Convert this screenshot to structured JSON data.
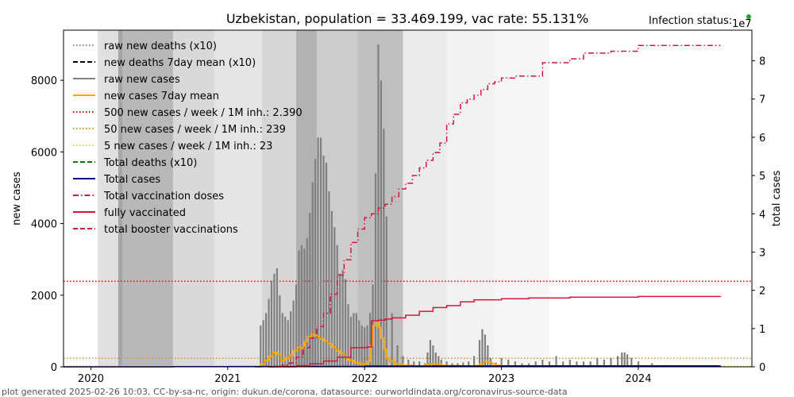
{
  "chart_data": {
    "type": "bar",
    "title": "Uzbekistan, population = 33.469.199, vac rate: 55.131%",
    "status_label": "Infection status:",
    "status_color": "#2ca02c",
    "exponent_label": "1e7",
    "ylabel_left": "new cases",
    "ylabel_right": "total cases",
    "xlim": [
      2019.8,
      2024.83
    ],
    "ylim_left": [
      0,
      9400
    ],
    "ylim_right": [
      0,
      88000000
    ],
    "x_ticks": [
      {
        "value": 2020,
        "label": "2020"
      },
      {
        "value": 2021,
        "label": "2021"
      },
      {
        "value": 2022,
        "label": "2022"
      },
      {
        "value": 2023,
        "label": "2023"
      },
      {
        "value": 2024,
        "label": "2024"
      }
    ],
    "y_ticks_left": [
      {
        "value": 0,
        "label": "0"
      },
      {
        "value": 2000,
        "label": "2000"
      },
      {
        "value": 4000,
        "label": "4000"
      },
      {
        "value": 6000,
        "label": "6000"
      },
      {
        "value": 8000,
        "label": "8000"
      }
    ],
    "y_ticks_right": [
      {
        "value": 0,
        "label": "0"
      },
      {
        "value": 10000000,
        "label": "1"
      },
      {
        "value": 20000000,
        "label": "2"
      },
      {
        "value": 30000000,
        "label": "3"
      },
      {
        "value": 40000000,
        "label": "4"
      },
      {
        "value": 50000000,
        "label": "5"
      },
      {
        "value": 60000000,
        "label": "6"
      },
      {
        "value": 70000000,
        "label": "7"
      },
      {
        "value": 80000000,
        "label": "8"
      }
    ],
    "threshold_lines": [
      {
        "value": 2390,
        "color": "#ff0000",
        "label": "500 new cases / week / 1M inh.: 2.390"
      },
      {
        "value": 239,
        "color": "#e08a2b",
        "label": "50 new cases / week / 1M inh.: 239"
      },
      {
        "value": 23,
        "color": "#e8d21c",
        "label": "5 new cases / week / 1M inh.: 23"
      }
    ],
    "legend": [
      {
        "label": "raw new deaths (x10)",
        "color": "#808080",
        "style": "dotted"
      },
      {
        "label": "new deaths 7day mean (x10)",
        "color": "#000000",
        "style": "dashed"
      },
      {
        "label": "raw new cases",
        "color": "#808080",
        "style": "solid"
      },
      {
        "label": "new cases 7day mean",
        "color": "#ffa500",
        "style": "solid"
      },
      {
        "label": "500 new cases / week / 1M inh.: 2.390",
        "color": "#ff0000",
        "style": "dotted"
      },
      {
        "label": "50 new cases / week / 1M inh.: 239",
        "color": "#e08a2b",
        "style": "dotted"
      },
      {
        "label": "5 new cases / week / 1M inh.: 23",
        "color": "#e8d21c",
        "style": "dotted"
      },
      {
        "label": "Total deaths (x10)",
        "color": "#008000",
        "style": "dashed"
      },
      {
        "label": "Total cases",
        "color": "#00008b",
        "style": "solid"
      },
      {
        "label": "Total vaccination doses",
        "color": "#dc143c",
        "style": "dashdot"
      },
      {
        "label": "fully vaccinated",
        "color": "#dc143c",
        "style": "solid"
      },
      {
        "label": "total booster vaccinations",
        "color": "#dc143c",
        "style": "dashed"
      }
    ],
    "background_bands": [
      {
        "start": 2020.05,
        "end": 2020.2,
        "shade": 0.12
      },
      {
        "start": 2020.2,
        "end": 2020.23,
        "shade": 0.35
      },
      {
        "start": 2020.23,
        "end": 2020.6,
        "shade": 0.28
      },
      {
        "start": 2020.6,
        "end": 2020.9,
        "shade": 0.15
      },
      {
        "start": 2020.9,
        "end": 2021.25,
        "shade": 0.1
      },
      {
        "start": 2021.25,
        "end": 2021.5,
        "shade": 0.16
      },
      {
        "start": 2021.5,
        "end": 2021.65,
        "shade": 0.3
      },
      {
        "start": 2021.65,
        "end": 2021.95,
        "shade": 0.2
      },
      {
        "start": 2021.95,
        "end": 2022.28,
        "shade": 0.25
      },
      {
        "start": 2022.28,
        "end": 2022.6,
        "shade": 0.08
      },
      {
        "start": 2022.6,
        "end": 2022.95,
        "shade": 0.05
      },
      {
        "start": 2022.95,
        "end": 2023.35,
        "shade": 0.03
      }
    ],
    "series": [
      {
        "name": "raw new cases",
        "type": "bar",
        "color": "#808080",
        "x": [
          2021.24,
          2021.26,
          2021.28,
          2021.3,
          2021.32,
          2021.34,
          2021.36,
          2021.38,
          2021.4,
          2021.42,
          2021.44,
          2021.46,
          2021.48,
          2021.5,
          2021.52,
          2021.54,
          2021.56,
          2021.58,
          2021.6,
          2021.62,
          2021.64,
          2021.66,
          2021.68,
          2021.7,
          2021.72,
          2021.74,
          2021.76,
          2021.78,
          2021.8,
          2021.82,
          2021.84,
          2021.86,
          2021.88,
          2021.9,
          2021.92,
          2021.94,
          2021.96,
          2021.98,
          2022.0,
          2022.02,
          2022.04,
          2022.06,
          2022.08,
          2022.1,
          2022.12,
          2022.14,
          2022.16,
          2022.2,
          2022.24,
          2022.28,
          2022.32,
          2022.36,
          2022.4,
          2022.44,
          2022.46,
          2022.48,
          2022.5,
          2022.52,
          2022.54,
          2022.56,
          2022.6,
          2022.64,
          2022.68,
          2022.72,
          2022.76,
          2022.8,
          2022.84,
          2022.86,
          2022.88,
          2022.9,
          2022.92,
          2022.96,
          2023.0,
          2023.05,
          2023.1,
          2023.15,
          2023.2,
          2023.25,
          2023.3,
          2023.35,
          2023.4,
          2023.45,
          2023.5,
          2023.55,
          2023.6,
          2023.65,
          2023.7,
          2023.75,
          2023.8,
          2023.85,
          2023.88,
          2023.9,
          2023.92,
          2023.95,
          2024.0,
          2024.1,
          2024.2
        ],
        "values": [
          1150,
          1300,
          1500,
          1900,
          2400,
          2600,
          2750,
          2000,
          1500,
          1400,
          1300,
          1550,
          1850,
          2300,
          3250,
          3400,
          3300,
          3600,
          4300,
          5150,
          5800,
          6400,
          6400,
          5900,
          5700,
          4900,
          4350,
          3900,
          3400,
          2600,
          2700,
          2450,
          1750,
          1400,
          1500,
          1500,
          1300,
          1150,
          1100,
          1150,
          1500,
          2300,
          5400,
          9000,
          8000,
          6650,
          4200,
          1500,
          600,
          300,
          200,
          150,
          150,
          100,
          400,
          750,
          600,
          400,
          300,
          200,
          150,
          100,
          100,
          120,
          150,
          300,
          750,
          1050,
          900,
          600,
          250,
          120,
          250,
          200,
          150,
          100,
          100,
          150,
          200,
          150,
          300,
          150,
          200,
          150,
          150,
          150,
          250,
          200,
          250,
          300,
          400,
          400,
          350,
          250,
          150,
          100,
          50
        ]
      },
      {
        "name": "new cases 7day mean",
        "type": "line",
        "color": "#ffa500",
        "x": [
          2021.2,
          2021.24,
          2021.27,
          2021.3,
          2021.33,
          2021.36,
          2021.39,
          2021.42,
          2021.45,
          2021.48,
          2021.51,
          2021.54,
          2021.56,
          2021.58,
          2021.61,
          2021.64,
          2021.67,
          2021.7,
          2021.73,
          2021.76,
          2021.79,
          2021.82,
          2021.85,
          2021.88,
          2021.92,
          2021.96,
          2022.0,
          2022.02,
          2022.04,
          2022.06,
          2022.08,
          2022.1,
          2022.12,
          2022.14,
          2022.16,
          2022.18,
          2022.22,
          2022.28,
          2022.35,
          2022.4,
          2022.44,
          2022.47,
          2022.5,
          2022.53,
          2022.56,
          2022.6,
          2022.7,
          2022.8,
          2022.84,
          2022.87,
          2022.9,
          2022.93,
          2022.96,
          2023.0,
          2023.2,
          2023.5,
          2023.8,
          2024.2,
          2024.6
        ],
        "values": [
          0,
          80,
          180,
          300,
          400,
          350,
          180,
          250,
          320,
          450,
          550,
          520,
          700,
          830,
          900,
          850,
          780,
          720,
          650,
          550,
          450,
          380,
          260,
          180,
          120,
          80,
          60,
          150,
          600,
          1150,
          1270,
          1100,
          800,
          500,
          250,
          150,
          80,
          40,
          20,
          20,
          60,
          90,
          80,
          60,
          40,
          30,
          20,
          30,
          80,
          150,
          130,
          80,
          40,
          20,
          20,
          20,
          20,
          10,
          10
        ]
      },
      {
        "name": "Total cases",
        "type": "line",
        "axis": "right",
        "color": "#00008b",
        "x": [
          2019.8,
          2020.2,
          2020.6,
          2021.0,
          2021.5,
          2022.0,
          2022.5,
          2023.0,
          2024.0,
          2024.6
        ],
        "values": [
          0,
          0,
          50000,
          80000,
          110000,
          200000,
          240000,
          250000,
          260000,
          270000
        ]
      },
      {
        "name": "Total vaccination doses",
        "type": "line",
        "axis": "right",
        "color": "#dc143c",
        "x": [
          2021.3,
          2021.35,
          2021.4,
          2021.45,
          2021.5,
          2021.55,
          2021.6,
          2021.65,
          2021.7,
          2021.75,
          2021.8,
          2021.85,
          2021.9,
          2021.95,
          2022.0,
          2022.05,
          2022.1,
          2022.15,
          2022.2,
          2022.25,
          2022.3,
          2022.35,
          2022.4,
          2022.45,
          2022.5,
          2022.55,
          2022.6,
          2022.65,
          2022.7,
          2022.75,
          2022.8,
          2022.85,
          2022.9,
          2022.95,
          2023.0,
          2023.1,
          2023.2,
          2023.3,
          2023.4,
          2023.5,
          2023.6,
          2023.8,
          2024.0,
          2024.3,
          2024.6
        ],
        "values": [
          0,
          200000,
          500000,
          1000000,
          2500000,
          5000000,
          7500000,
          10500000,
          14000000,
          19000000,
          24000000,
          28000000,
          32500000,
          36000000,
          39000000,
          40000000,
          41500000,
          42500000,
          44500000,
          46500000,
          48000000,
          50000000,
          52000000,
          54000000,
          56000000,
          58500000,
          63500000,
          66000000,
          69000000,
          70000000,
          71000000,
          72500000,
          74000000,
          74500000,
          75500000,
          76000000,
          76000000,
          79500000,
          79500000,
          80500000,
          82000000,
          82500000,
          84000000,
          84000000,
          84000000
        ]
      },
      {
        "name": "fully vaccinated",
        "type": "line",
        "axis": "right",
        "color": "#dc143c",
        "x": [
          2021.3,
          2021.5,
          2021.6,
          2021.7,
          2021.8,
          2021.9,
          2022.0,
          2022.02,
          2022.05,
          2022.1,
          2022.15,
          2022.2,
          2022.3,
          2022.4,
          2022.5,
          2022.6,
          2022.7,
          2022.8,
          2023.0,
          2023.2,
          2023.5,
          2024.0,
          2024.6
        ],
        "values": [
          0,
          300000,
          800000,
          1500000,
          2500000,
          5000000,
          5000000,
          5200000,
          12000000,
          12200000,
          12500000,
          12800000,
          13500000,
          14500000,
          15500000,
          16000000,
          17000000,
          17500000,
          17800000,
          18000000,
          18200000,
          18400000,
          18500000
        ]
      }
    ]
  },
  "footer": {
    "text": "plot generated 2025-02-26 10:03, CC-by-sa-nc, origin: dukun.de/corona, datasource: ourworldindata.org/coronavirus-source-data"
  }
}
